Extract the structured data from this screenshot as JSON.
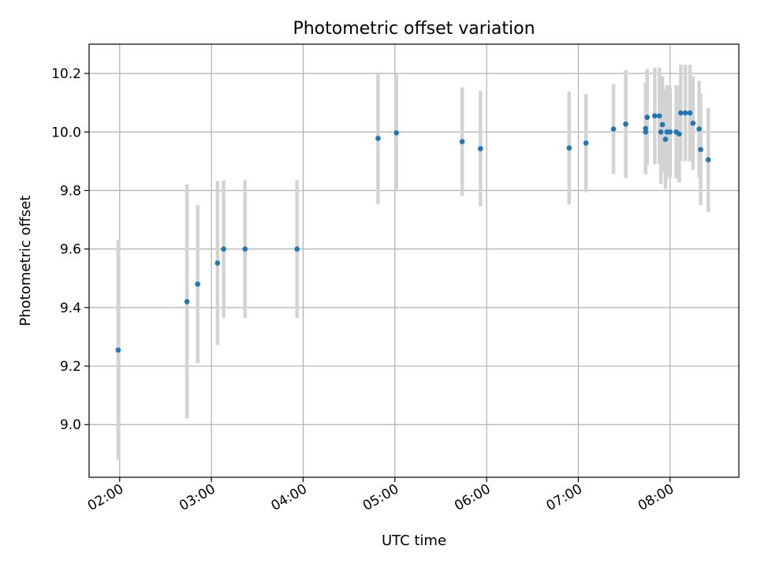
{
  "chart_data": {
    "type": "scatter",
    "title": "Photometric offset variation",
    "xlabel": "UTC time",
    "ylabel": "Photometric offset",
    "x_is_time": true,
    "x_tick_labels": [
      "02:00",
      "03:00",
      "04:00",
      "05:00",
      "06:00",
      "07:00",
      "08:00"
    ],
    "x_ticks": [
      "02:00",
      "03:00",
      "04:00",
      "05:00",
      "06:00",
      "07:00",
      "08:00"
    ],
    "xlim": [
      "01:40",
      "08:45"
    ],
    "ylim": [
      8.82,
      10.3
    ],
    "y_ticks": [
      9.0,
      9.2,
      9.4,
      9.6,
      9.8,
      10.0,
      10.2
    ],
    "y_tick_labels": [
      "9.0",
      "9.2",
      "9.4",
      "9.6",
      "9.8",
      "10.0",
      "10.2"
    ],
    "grid": true,
    "marker_color": "#1f77b4",
    "errorbar_color": "#d3d3d3",
    "series": [
      {
        "points": [
          {
            "x": "01:59",
            "y": 9.255,
            "yerr": 0.375
          },
          {
            "x": "02:44",
            "y": 9.42,
            "yerr": 0.4
          },
          {
            "x": "02:51",
            "y": 9.48,
            "yerr": 0.27
          },
          {
            "x": "03:04",
            "y": 9.552,
            "yerr": 0.28
          },
          {
            "x": "03:08",
            "y": 9.6,
            "yerr": 0.235
          },
          {
            "x": "03:22",
            "y": 9.6,
            "yerr": 0.235
          },
          {
            "x": "03:56",
            "y": 9.6,
            "yerr": 0.235
          },
          {
            "x": "04:49",
            "y": 9.978,
            "yerr": 0.225
          },
          {
            "x": "05:01",
            "y": 9.997,
            "yerr": 0.2
          },
          {
            "x": "05:44",
            "y": 9.967,
            "yerr": 0.185
          },
          {
            "x": "05:56",
            "y": 9.943,
            "yerr": 0.197
          },
          {
            "x": "06:54",
            "y": 9.945,
            "yerr": 0.193
          },
          {
            "x": "07:05",
            "y": 9.962,
            "yerr": 0.168
          },
          {
            "x": "07:23",
            "y": 10.01,
            "yerr": 0.153
          },
          {
            "x": "07:31",
            "y": 10.027,
            "yerr": 0.185
          },
          {
            "x": "07:44",
            "y": 10.0,
            "yerr": 0.145
          },
          {
            "x": "07:44",
            "y": 10.012,
            "yerr": 0.155
          },
          {
            "x": "07:45",
            "y": 10.05,
            "yerr": 0.165
          },
          {
            "x": "07:50",
            "y": 10.055,
            "yerr": 0.165
          },
          {
            "x": "07:53",
            "y": 10.055,
            "yerr": 0.165
          },
          {
            "x": "07:54",
            "y": 10.0,
            "yerr": 0.178
          },
          {
            "x": "07:55",
            "y": 10.025,
            "yerr": 0.165
          },
          {
            "x": "07:57",
            "y": 9.975,
            "yerr": 0.17
          },
          {
            "x": "07:58",
            "y": 10.0,
            "yerr": 0.16
          },
          {
            "x": "08:00",
            "y": 10.0,
            "yerr": 0.155
          },
          {
            "x": "08:04",
            "y": 10.0,
            "yerr": 0.16
          },
          {
            "x": "08:06",
            "y": 9.993,
            "yerr": 0.165
          },
          {
            "x": "08:07",
            "y": 10.065,
            "yerr": 0.165
          },
          {
            "x": "08:10",
            "y": 10.065,
            "yerr": 0.165
          },
          {
            "x": "08:13",
            "y": 10.065,
            "yerr": 0.165
          },
          {
            "x": "08:15",
            "y": 10.03,
            "yerr": 0.16
          },
          {
            "x": "08:19",
            "y": 10.01,
            "yerr": 0.165
          },
          {
            "x": "08:20",
            "y": 9.94,
            "yerr": 0.19
          },
          {
            "x": "08:25",
            "y": 9.905,
            "yerr": 0.178
          }
        ]
      }
    ]
  }
}
